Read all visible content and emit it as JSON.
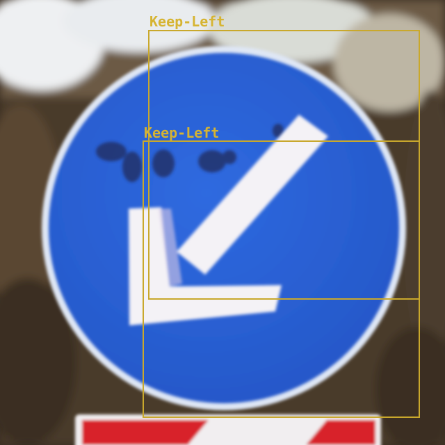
{
  "image": {
    "subject": "traffic-sign",
    "sign_type": "keep-left",
    "colors": {
      "sign_blue": "#2a63d8",
      "sign_rim": "#dfe7f5",
      "arrow_white": "#f4f2f6",
      "foliage_dark": "#3b2f22",
      "foliage_mid": "#5e4a33",
      "sky_white": "#eef0f2",
      "plate_red": "#d8232a",
      "annotation": "#c9a82c"
    }
  },
  "detections": [
    {
      "label": "Keep-Left"
    },
    {
      "label": "Keep-Left"
    }
  ]
}
